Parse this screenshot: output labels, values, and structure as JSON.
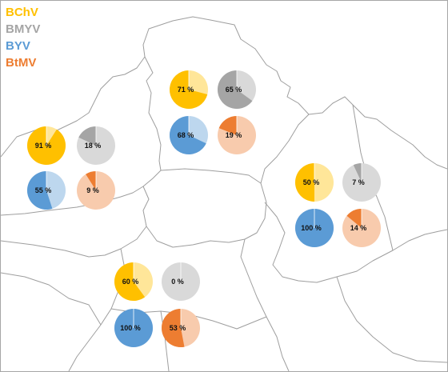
{
  "legend": {
    "items": [
      {
        "label": "BChV",
        "color": "#ffc000"
      },
      {
        "label": "BMYV",
        "color": "#a5a5a5"
      },
      {
        "label": "BYV",
        "color": "#5b9bd5"
      },
      {
        "label": "BtMV",
        "color": "#ed7d31"
      }
    ]
  },
  "colors": {
    "BChV": {
      "dark": "#ffc000",
      "light": "#ffe699"
    },
    "BMYV": {
      "dark": "#a5a5a5",
      "light": "#d9d9d9"
    },
    "BYV": {
      "dark": "#5b9bd5",
      "light": "#bdd7ee"
    },
    "BtMV": {
      "dark": "#ed7d31",
      "light": "#f8cbad"
    }
  },
  "chart_data": [
    {
      "type": "pie",
      "region": "west",
      "virus": "BChV",
      "value": 91,
      "label": "91 %"
    },
    {
      "type": "pie",
      "region": "west",
      "virus": "BMYV",
      "value": 18,
      "label": "18 %"
    },
    {
      "type": "pie",
      "region": "west",
      "virus": "BYV",
      "value": 55,
      "label": "55 %"
    },
    {
      "type": "pie",
      "region": "west",
      "virus": "BtMV",
      "value": 9,
      "label": "9 %"
    },
    {
      "type": "pie",
      "region": "north",
      "virus": "BChV",
      "value": 71,
      "label": "71 %"
    },
    {
      "type": "pie",
      "region": "north",
      "virus": "BMYV",
      "value": 65,
      "label": "65 %"
    },
    {
      "type": "pie",
      "region": "north",
      "virus": "BYV",
      "value": 68,
      "label": "68 %"
    },
    {
      "type": "pie",
      "region": "north",
      "virus": "BtMV",
      "value": 19,
      "label": "19 %"
    },
    {
      "type": "pie",
      "region": "east",
      "virus": "BChV",
      "value": 50,
      "label": "50 %"
    },
    {
      "type": "pie",
      "region": "east",
      "virus": "BMYV",
      "value": 7,
      "label": "7 %"
    },
    {
      "type": "pie",
      "region": "east",
      "virus": "BYV",
      "value": 100,
      "label": "100 %"
    },
    {
      "type": "pie",
      "region": "east",
      "virus": "BtMV",
      "value": 14,
      "label": "14 %"
    },
    {
      "type": "pie",
      "region": "south",
      "virus": "BChV",
      "value": 60,
      "label": "60 %"
    },
    {
      "type": "pie",
      "region": "south",
      "virus": "BMYV",
      "value": 0,
      "label": "0 %"
    },
    {
      "type": "pie",
      "region": "south",
      "virus": "BYV",
      "value": 100,
      "label": "100 %"
    },
    {
      "type": "pie",
      "region": "south",
      "virus": "BtMV",
      "value": 53,
      "label": "53 %"
    }
  ]
}
